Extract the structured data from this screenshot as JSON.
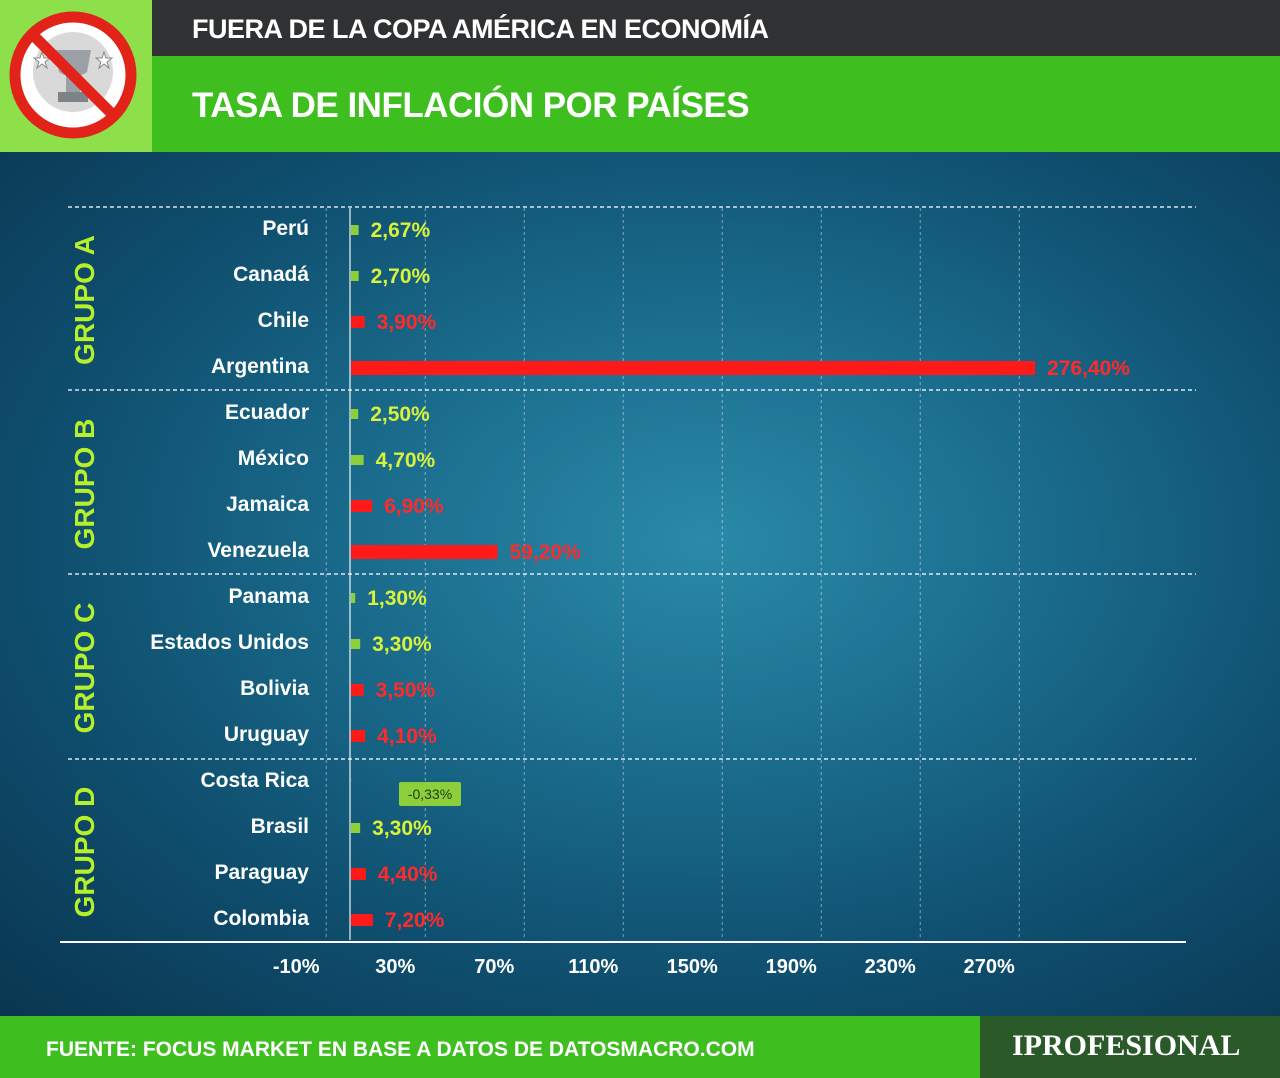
{
  "header": {
    "subtitle": "FUERA DE LA COPA AMÉRICA EN ECONOMÍA",
    "title": "TASA DE INFLACIÓN POR PAÍSES"
  },
  "footer": {
    "source": "FUENTE: FOCUS MARKET EN BASE A DATOS DE DATOSMACRO.COM",
    "brand": "IPROFESIONAL"
  },
  "colors": {
    "positive_low": "#8ccf3a",
    "high": "#ff1a1a",
    "green_header": "#3ebf1f",
    "label_yellow": "#d9f23a",
    "label_red": "#ff2a2a"
  },
  "chart_data": {
    "type": "bar",
    "orientation": "horizontal",
    "title": "TASA DE INFLACIÓN POR PAÍSES",
    "xlabel": "",
    "ylabel": "",
    "xlim": [
      -10,
      310
    ],
    "x_ticks": [
      "-10%",
      "30%",
      "70%",
      "110%",
      "150%",
      "190%",
      "230%",
      "270%"
    ],
    "x_tick_values": [
      -10,
      30,
      70,
      110,
      150,
      190,
      230,
      270
    ],
    "grid": "vertical dashed",
    "groups": [
      {
        "name": "GRUPO A",
        "items": [
          {
            "country": "Perú",
            "value": 2.67,
            "label": "2,67%",
            "color": "green"
          },
          {
            "country": "Canadá",
            "value": 2.7,
            "label": "2,70%",
            "color": "green"
          },
          {
            "country": "Chile",
            "value": 3.9,
            "label": "3,90%",
            "color": "red"
          },
          {
            "country": "Argentina",
            "value": 276.4,
            "label": "276,40%",
            "color": "red"
          }
        ]
      },
      {
        "name": "GRUPO B",
        "items": [
          {
            "country": "Ecuador",
            "value": 2.5,
            "label": "2,50%",
            "color": "green"
          },
          {
            "country": "México",
            "value": 4.7,
            "label": "4,70%",
            "color": "green"
          },
          {
            "country": "Jamaica",
            "value": 6.9,
            "label": "6,90%",
            "color": "red"
          },
          {
            "country": "Venezuela",
            "value": 59.2,
            "label": "59,20%",
            "color": "red"
          }
        ]
      },
      {
        "name": "GRUPO C",
        "items": [
          {
            "country": "Panama",
            "value": 1.3,
            "label": "1,30%",
            "color": "green"
          },
          {
            "country": "Estados Unidos",
            "value": 3.3,
            "label": "3,30%",
            "color": "green"
          },
          {
            "country": "Bolivia",
            "value": 3.5,
            "label": "3,50%",
            "color": "red"
          },
          {
            "country": "Uruguay",
            "value": 4.1,
            "label": "4,10%",
            "color": "red"
          }
        ]
      },
      {
        "name": "GRUPO D",
        "items": [
          {
            "country": "Costa Rica",
            "value": -0.33,
            "label": "-0,33%",
            "color": "badge"
          },
          {
            "country": "Brasil",
            "value": 3.3,
            "label": "3,30%",
            "color": "green"
          },
          {
            "country": "Paraguay",
            "value": 4.4,
            "label": "4,40%",
            "color": "red"
          },
          {
            "country": "Colombia",
            "value": 7.2,
            "label": "7,20%",
            "color": "red"
          }
        ]
      }
    ]
  }
}
